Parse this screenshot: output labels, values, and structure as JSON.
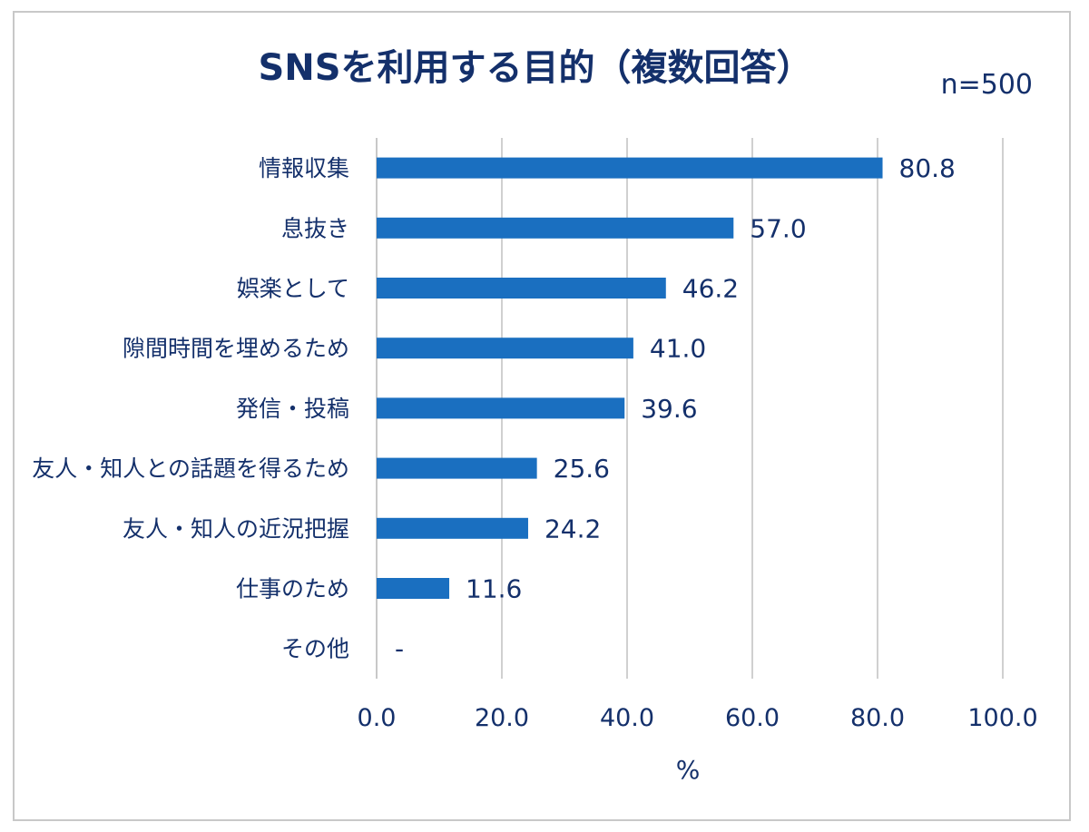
{
  "chart_data": {
    "type": "bar",
    "orientation": "horizontal",
    "title": "SNSを利用する目的（複数回答）",
    "note": "n=500",
    "xlabel": "%",
    "ylabel": "",
    "xlim": [
      0,
      100
    ],
    "x_ticks": [
      "0.0",
      "20.0",
      "40.0",
      "60.0",
      "80.0",
      "100.0"
    ],
    "grid": true,
    "bar_color": "#1a6fc0",
    "categories": [
      "情報収集",
      "息抜き",
      "娯楽として",
      "隙間時間を埋めるため",
      "発信・投稿",
      "友人・知人との話題を得るため",
      "友人・知人の近況把握",
      "仕事のため",
      "その他"
    ],
    "values": [
      80.8,
      57.0,
      46.2,
      41.0,
      39.6,
      25.6,
      24.2,
      11.6,
      null
    ],
    "value_labels": [
      "80.8",
      "57.0",
      "46.2",
      "41.0",
      "39.6",
      "25.6",
      "24.2",
      "11.6",
      "-"
    ]
  }
}
